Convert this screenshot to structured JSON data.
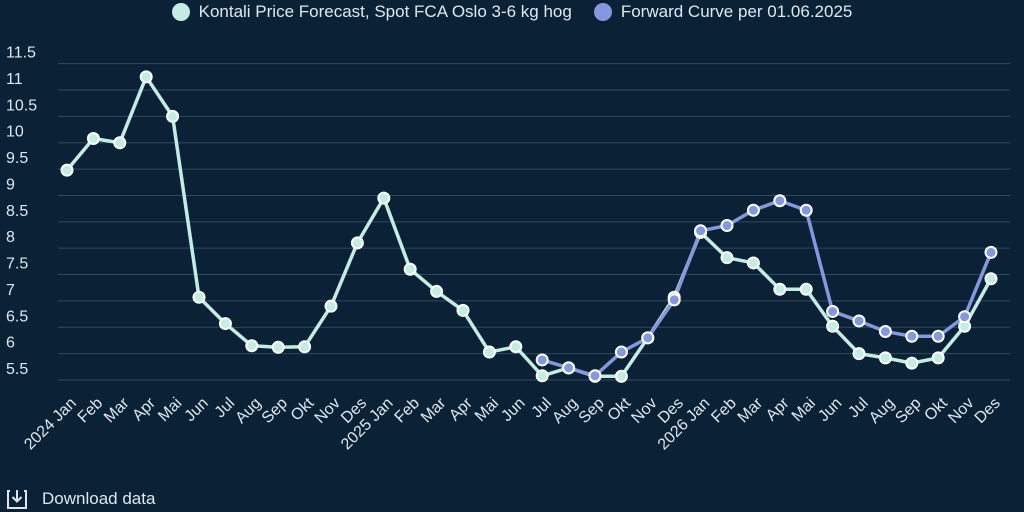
{
  "legend": {
    "series1": "Kontali Price Forecast, Spot FCA Oslo 3-6 kg hog",
    "series2": "Forward Curve per 01.06.2025"
  },
  "download": {
    "label": "Download data"
  },
  "colors": {
    "background": "#0b2236",
    "series1": "#c3ece2",
    "series2": "#8597de",
    "grid": "#2f4a60"
  },
  "chart_data": {
    "type": "line",
    "categories": [
      "2024 Jan",
      "Feb",
      "Mar",
      "Apr",
      "Mai",
      "Jun",
      "Jul",
      "Aug",
      "Sep",
      "Okt",
      "Nov",
      "Des",
      "2025 Jan",
      "Feb",
      "Mar",
      "Apr",
      "Mai",
      "Jun",
      "Jul",
      "Aug",
      "Sep",
      "Okt",
      "Nov",
      "Des",
      "2026 Jan",
      "Feb",
      "Mar",
      "Apr",
      "Mai",
      "Jun",
      "Jul",
      "Aug",
      "Sep",
      "Okt",
      "Nov",
      "Des"
    ],
    "yticks": [
      5.5,
      6,
      6.5,
      7,
      7.5,
      8,
      8.5,
      9,
      9.5,
      10,
      10.5,
      11,
      11.5
    ],
    "ylim": [
      5.3,
      11.6
    ],
    "grid": "horizontal",
    "legend_position": "top",
    "series": [
      {
        "name": "Kontali Price Forecast, Spot FCA Oslo 3-6 kg hog",
        "color": "#c3ece2",
        "values": [
          9.48,
          10.08,
          10.0,
          11.25,
          10.5,
          7.07,
          6.57,
          6.15,
          6.12,
          6.13,
          6.9,
          8.1,
          8.95,
          7.6,
          7.18,
          6.82,
          6.03,
          6.13,
          5.58,
          5.73,
          5.57,
          5.57,
          6.3,
          7.07,
          8.3,
          7.82,
          7.72,
          7.22,
          7.22,
          6.52,
          6.0,
          5.92,
          5.82,
          5.92,
          6.52,
          7.42
        ]
      },
      {
        "name": "Forward Curve per 01.06.2025",
        "color": "#8597de",
        "values": [
          null,
          null,
          null,
          null,
          null,
          null,
          null,
          null,
          null,
          null,
          null,
          null,
          null,
          null,
          null,
          null,
          null,
          null,
          5.88,
          5.73,
          5.58,
          6.03,
          6.3,
          7.02,
          8.33,
          8.43,
          8.72,
          8.9,
          8.72,
          6.8,
          6.62,
          6.42,
          6.33,
          6.33,
          6.7,
          7.92
        ]
      }
    ]
  }
}
